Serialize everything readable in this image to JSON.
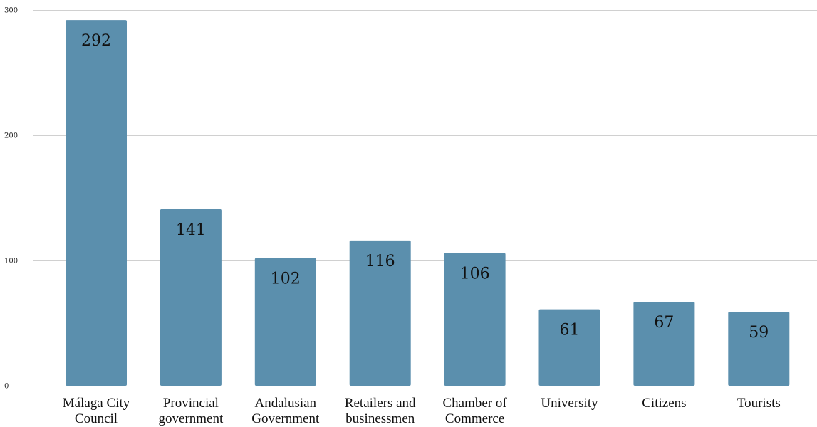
{
  "chart_data": {
    "type": "bar",
    "categories": [
      [
        "Málaga City",
        "Council"
      ],
      [
        "Provincial",
        "government"
      ],
      [
        "Andalusian",
        "Government"
      ],
      [
        "Retailers and",
        "businessmen"
      ],
      [
        "Chamber of",
        "Commerce"
      ],
      [
        "University"
      ],
      [
        "Citizens"
      ],
      [
        "Tourists"
      ]
    ],
    "values": [
      292,
      141,
      102,
      116,
      106,
      61,
      67,
      59
    ],
    "data_labels": [
      "292",
      "141",
      "102",
      "116",
      "106",
      "61",
      "67",
      "59"
    ],
    "title": "",
    "xlabel": "",
    "ylabel": "",
    "ylim": [
      0,
      300
    ],
    "yticks": [
      0,
      100,
      200,
      300
    ],
    "ytick_labels": [
      "0",
      "100",
      "200",
      "300"
    ],
    "grid": true,
    "legend": "none",
    "bar_color": "#5b8fad"
  }
}
